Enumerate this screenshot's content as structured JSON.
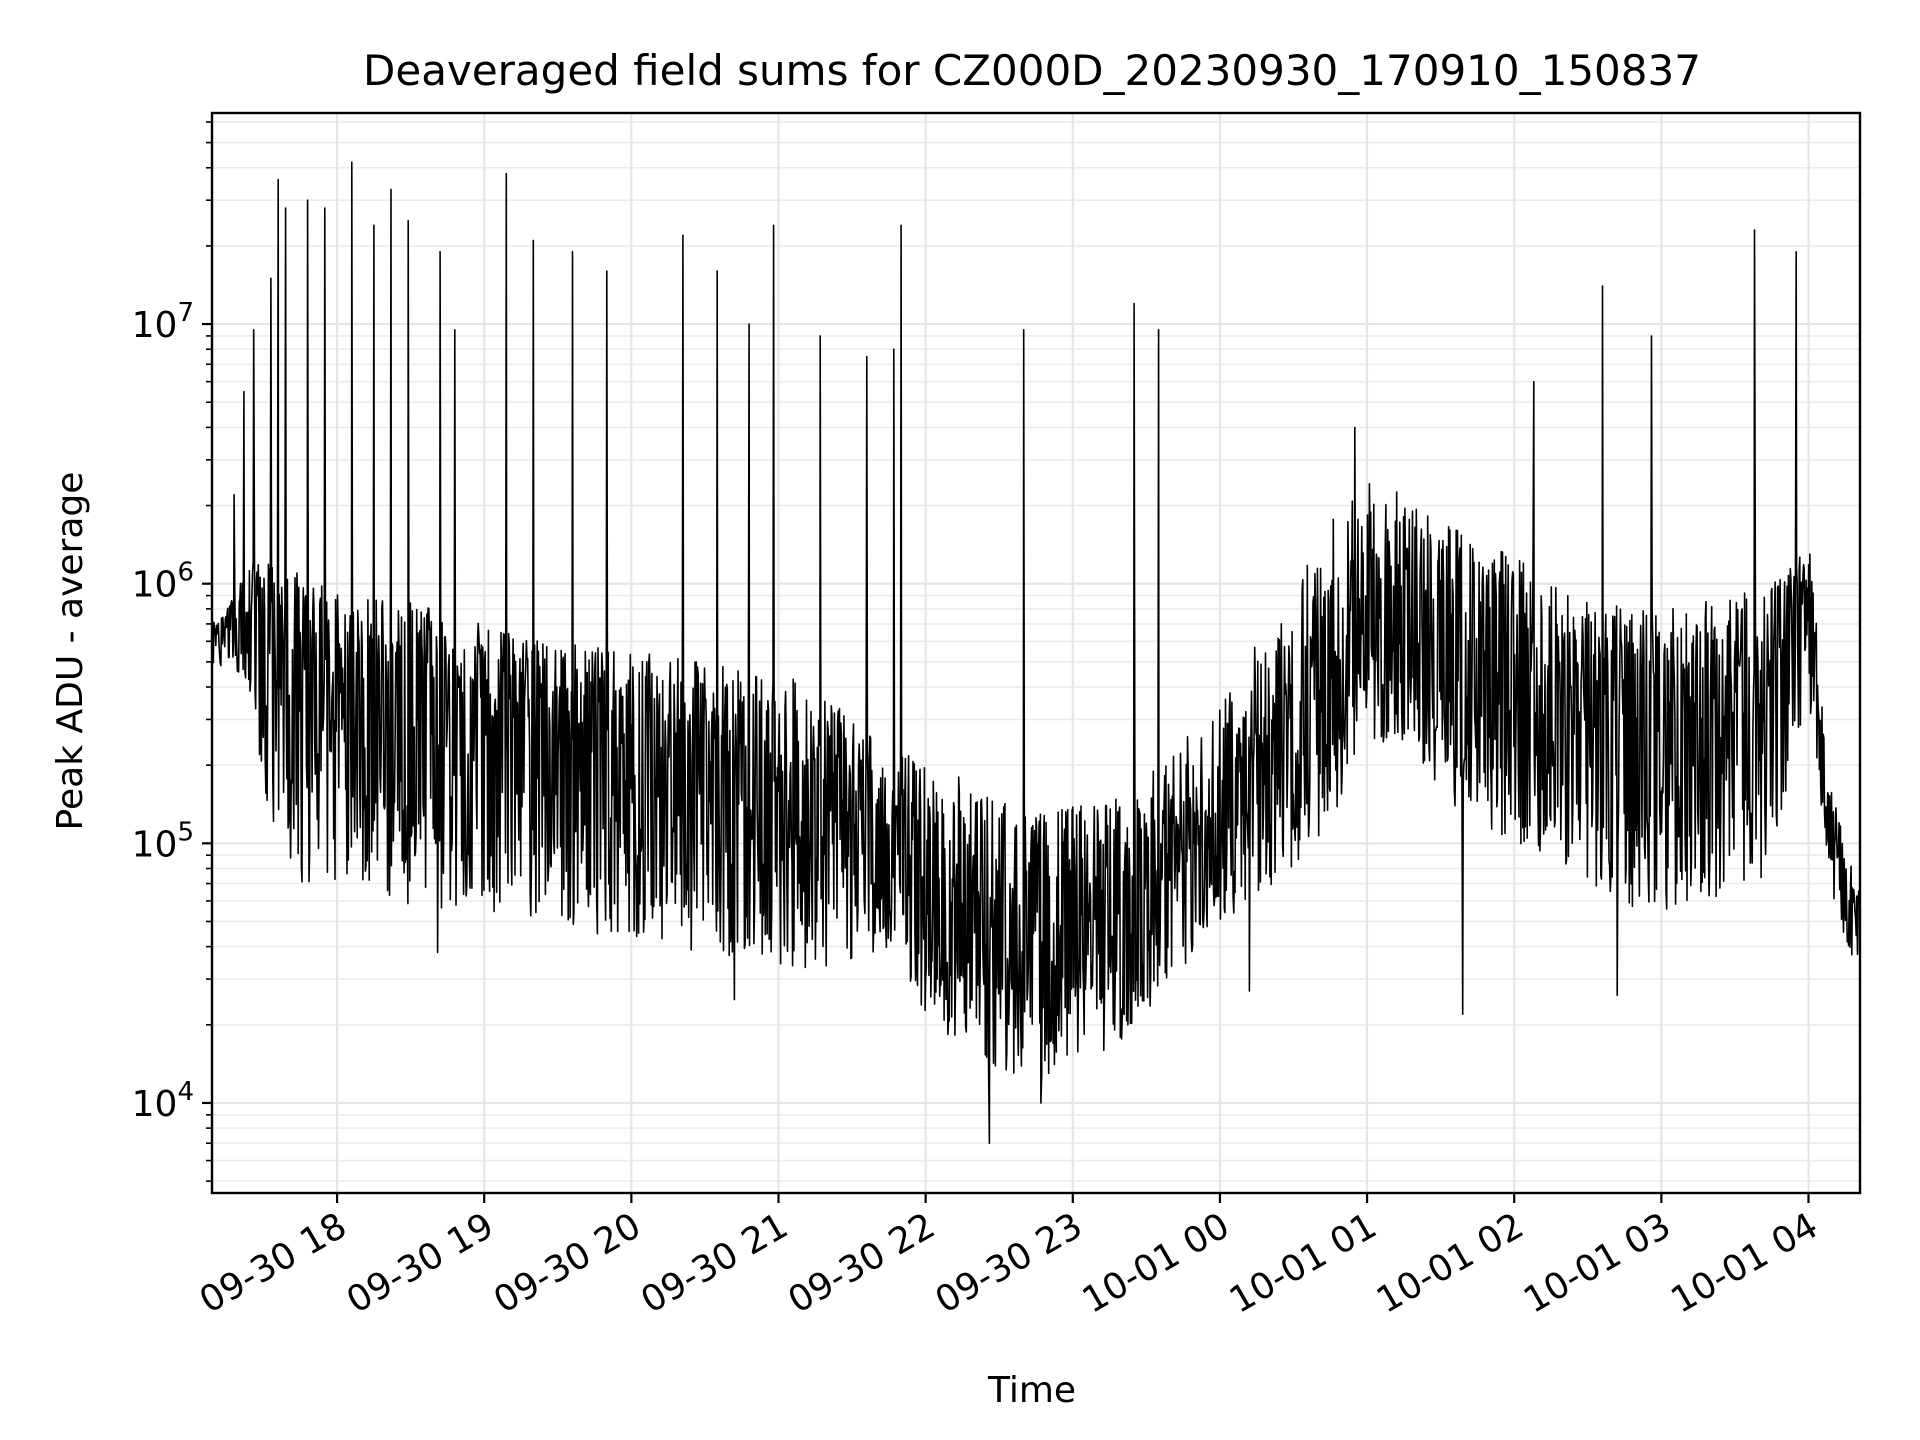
{
  "chart_data": {
    "type": "line",
    "title": "Deaveraged field sums for CZ000D_20230930_170910_150837",
    "xlabel": "Time",
    "ylabel": "Peak ADU - average",
    "y_scale": "log",
    "ylim": [
      4500,
      65000000
    ],
    "xlim": [
      "2023-09-30 17:09",
      "2023-10-01 04:21"
    ],
    "grid": "on (major and minor)",
    "x_ticks": [
      "09-30 18",
      "09-30 19",
      "09-30 20",
      "09-30 21",
      "09-30 22",
      "09-30 23",
      "10-01 00",
      "10-01 01",
      "10-01 02",
      "10-01 03",
      "10-01 04"
    ],
    "x_tick_values": [
      "2023-09-30 18:00",
      "2023-09-30 19:00",
      "2023-09-30 20:00",
      "2023-09-30 21:00",
      "2023-09-30 22:00",
      "2023-09-30 23:00",
      "2023-10-01 00:00",
      "2023-10-01 01:00",
      "2023-10-01 02:00",
      "2023-10-01 03:00",
      "2023-10-01 04:00"
    ],
    "y_ticks": [
      {
        "base": "10",
        "exp": "4",
        "value": 10000
      },
      {
        "base": "10",
        "exp": "5",
        "value": 100000
      },
      {
        "base": "10",
        "exp": "6",
        "value": 1000000
      },
      {
        "base": "10",
        "exp": "7",
        "value": 10000000
      }
    ],
    "series": [
      {
        "color": "#000000",
        "x": [
          "2023-09-30 17:09",
          "2023-09-30 17:15",
          "2023-09-30 17:20",
          "2023-09-30 17:25",
          "2023-09-30 17:30",
          "2023-09-30 17:35",
          "2023-09-30 17:40",
          "2023-09-30 17:45",
          "2023-09-30 17:50",
          "2023-09-30 17:55",
          "2023-09-30 18:00",
          "2023-09-30 18:10",
          "2023-09-30 18:20",
          "2023-09-30 18:30",
          "2023-09-30 18:40",
          "2023-09-30 18:50",
          "2023-09-30 19:00",
          "2023-09-30 19:10",
          "2023-09-30 19:20",
          "2023-09-30 19:30",
          "2023-09-30 19:40",
          "2023-09-30 19:50",
          "2023-09-30 20:00",
          "2023-09-30 20:15",
          "2023-09-30 20:30",
          "2023-09-30 20:45",
          "2023-09-30 21:00",
          "2023-09-30 21:15",
          "2023-09-30 21:30",
          "2023-09-30 21:45",
          "2023-09-30 22:00",
          "2023-09-30 22:15",
          "2023-09-30 22:30",
          "2023-09-30 22:45",
          "2023-09-30 23:00",
          "2023-09-30 23:15",
          "2023-09-30 23:30",
          "2023-09-30 23:45",
          "2023-10-01 00:00",
          "2023-10-01 00:15",
          "2023-10-01 00:30",
          "2023-10-01 00:45",
          "2023-10-01 01:00",
          "2023-10-01 01:15",
          "2023-10-01 01:30",
          "2023-10-01 01:45",
          "2023-10-01 02:00",
          "2023-10-01 02:15",
          "2023-10-01 02:30",
          "2023-10-01 02:45",
          "2023-10-01 03:00",
          "2023-10-01 03:15",
          "2023-10-01 03:30",
          "2023-10-01 03:45",
          "2023-10-01 04:00",
          "2023-10-01 04:10",
          "2023-10-01 04:21"
        ],
        "y": [
          600000,
          650000,
          620000,
          700000,
          500000,
          350000,
          300000,
          320000,
          330000,
          340000,
          350000,
          300000,
          320000,
          330000,
          300000,
          280000,
          290000,
          300000,
          270000,
          260000,
          250000,
          240000,
          220000,
          200000,
          190000,
          170000,
          150000,
          130000,
          110000,
          85000,
          60000,
          45000,
          40000,
          35000,
          40000,
          45000,
          55000,
          75000,
          110000,
          160000,
          240000,
          380000,
          650000,
          600000,
          500000,
          480000,
          400000,
          350000,
          300000,
          250000,
          260000,
          280000,
          300000,
          350000,
          700000,
          90000,
          45000
        ],
        "low": [
          450000,
          500000,
          450000,
          350000,
          150000,
          90000,
          70000,
          70000,
          70000,
          70000,
          72000,
          65000,
          60000,
          58000,
          55000,
          52000,
          55000,
          54000,
          52000,
          48000,
          46000,
          44000,
          42000,
          40000,
          38000,
          36000,
          34000,
          32000,
          35000,
          40000,
          22000,
          16000,
          13000,
          12000,
          15000,
          16000,
          20000,
          30000,
          50000,
          60000,
          80000,
          120000,
          250000,
          220000,
          150000,
          120000,
          100000,
          90000,
          70000,
          55000,
          55000,
          60000,
          65000,
          70000,
          350000,
          60000,
          28000
        ],
        "high": [
          700000,
          800000,
          1000000,
          1200000,
          1300000,
          1300000,
          1200000,
          1100000,
          1000000,
          1000000,
          950000,
          900000,
          900000,
          850000,
          800000,
          750000,
          700000,
          650000,
          620000,
          600000,
          580000,
          560000,
          550000,
          520000,
          500000,
          480000,
          450000,
          400000,
          300000,
          250000,
          200000,
          180000,
          150000,
          130000,
          140000,
          150000,
          180000,
          250000,
          350000,
          600000,
          1000000,
          1800000,
          2500000,
          2200000,
          1800000,
          1500000,
          1300000,
          1100000,
          900000,
          800000,
          800000,
          850000,
          900000,
          1000000,
          1500000,
          150000,
          70000
        ],
        "spikes": [
          {
            "x": "2023-09-30 17:18",
            "y": 2200000
          },
          {
            "x": "2023-09-30 17:22",
            "y": 5500000
          },
          {
            "x": "2023-09-30 17:26",
            "y": 9500000
          },
          {
            "x": "2023-09-30 17:33",
            "y": 15000000
          },
          {
            "x": "2023-09-30 17:36",
            "y": 36000000
          },
          {
            "x": "2023-09-30 17:39",
            "y": 28000000
          },
          {
            "x": "2023-09-30 17:48",
            "y": 30000000
          },
          {
            "x": "2023-09-30 17:55",
            "y": 28000000
          },
          {
            "x": "2023-09-30 18:06",
            "y": 42000000
          },
          {
            "x": "2023-09-30 18:15",
            "y": 24000000
          },
          {
            "x": "2023-09-30 18:22",
            "y": 33000000
          },
          {
            "x": "2023-09-30 18:29",
            "y": 25000000
          },
          {
            "x": "2023-09-30 18:42",
            "y": 19000000
          },
          {
            "x": "2023-09-30 18:48",
            "y": 9500000
          },
          {
            "x": "2023-09-30 19:09",
            "y": 38000000
          },
          {
            "x": "2023-09-30 19:20",
            "y": 21000000
          },
          {
            "x": "2023-09-30 19:36",
            "y": 19000000
          },
          {
            "x": "2023-09-30 19:50",
            "y": 16000000
          },
          {
            "x": "2023-09-30 20:21",
            "y": 22000000
          },
          {
            "x": "2023-09-30 20:35",
            "y": 16000000
          },
          {
            "x": "2023-09-30 20:48",
            "y": 10000000
          },
          {
            "x": "2023-09-30 20:58",
            "y": 24000000
          },
          {
            "x": "2023-09-30 21:17",
            "y": 9000000
          },
          {
            "x": "2023-09-30 21:36",
            "y": 7500000
          },
          {
            "x": "2023-09-30 21:47",
            "y": 8000000
          },
          {
            "x": "2023-09-30 21:50",
            "y": 24000000
          },
          {
            "x": "2023-09-30 22:40",
            "y": 9500000
          },
          {
            "x": "2023-09-30 23:25",
            "y": 12000000
          },
          {
            "x": "2023-09-30 23:35",
            "y": 9500000
          },
          {
            "x": "2023-10-01 00:55",
            "y": 4000000
          },
          {
            "x": "2023-10-01 02:08",
            "y": 6000000
          },
          {
            "x": "2023-10-01 02:36",
            "y": 14000000
          },
          {
            "x": "2023-10-01 02:56",
            "y": 9000000
          },
          {
            "x": "2023-10-01 03:38",
            "y": 23000000
          },
          {
            "x": "2023-10-01 03:55",
            "y": 19000000
          }
        ],
        "dips": [
          {
            "x": "2023-09-30 18:41",
            "y": 38000
          },
          {
            "x": "2023-09-30 20:42",
            "y": 25000
          },
          {
            "x": "2023-09-30 22:26",
            "y": 7000
          },
          {
            "x": "2023-09-30 22:47",
            "y": 10000
          },
          {
            "x": "2023-10-01 00:12",
            "y": 27000
          },
          {
            "x": "2023-10-01 01:39",
            "y": 22000
          },
          {
            "x": "2023-10-01 02:42",
            "y": 26000
          }
        ]
      }
    ]
  }
}
